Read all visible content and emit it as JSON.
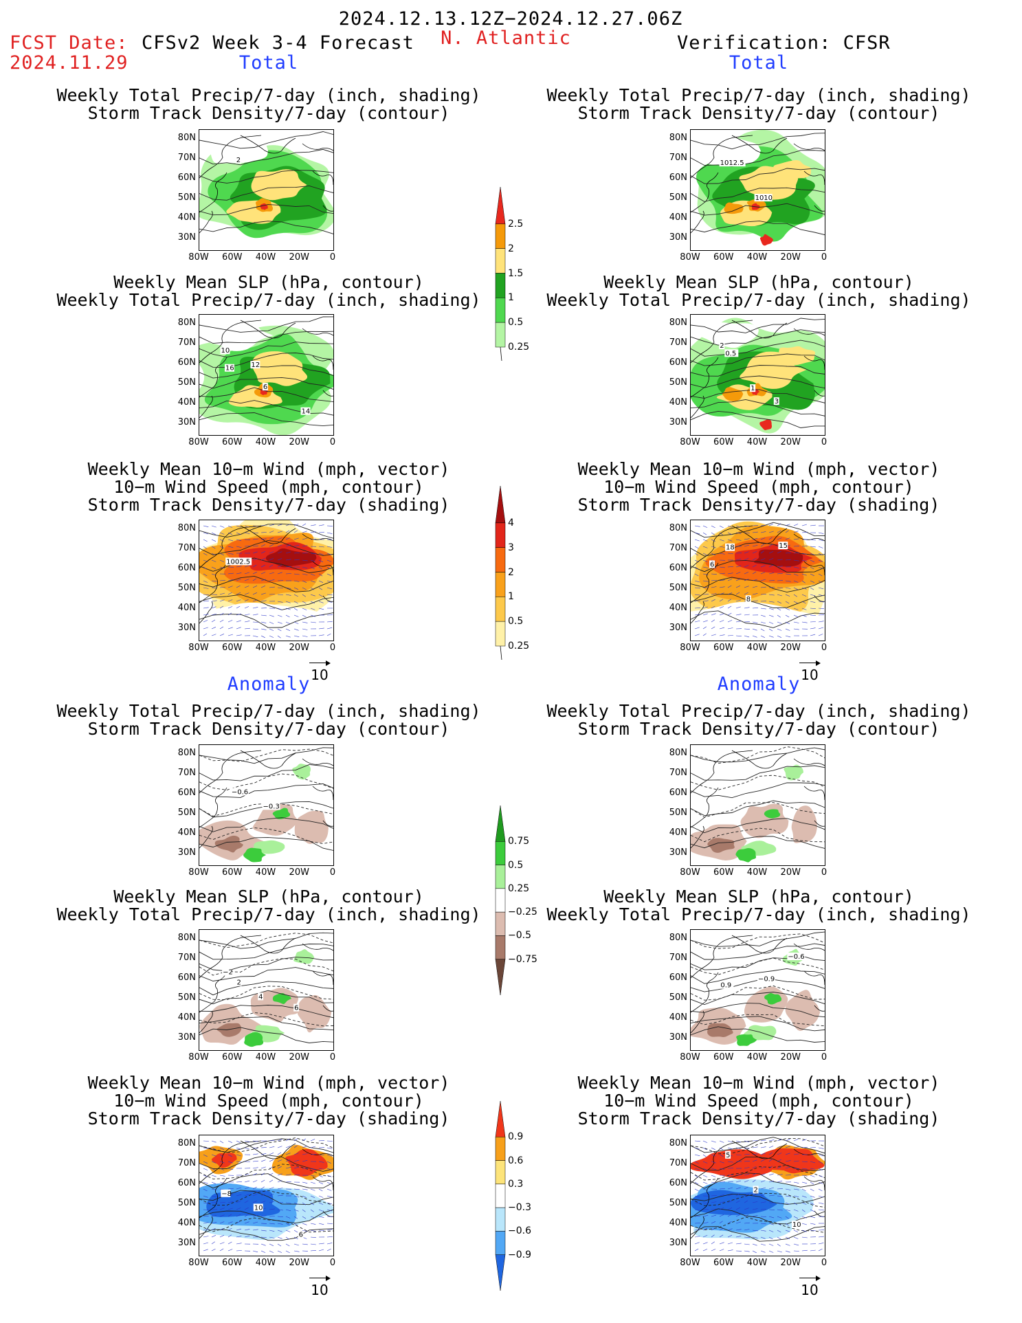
{
  "header": {
    "period": "2024.12.13.12Z−2024.12.27.06Z",
    "fcst_label": "FCST Date:",
    "fcst_date": "2024.11.29",
    "model": "CFSv2 Week 3-4 Forecast",
    "region": "N. Atlantic",
    "verification": "Verification: CFSR"
  },
  "sections": {
    "total_label": "Total",
    "anomaly_label": "Anomaly"
  },
  "titles": {
    "precip_storm": [
      "Weekly Total Precip/7-day (inch, shading)",
      "Storm Track Density/7-day (contour)"
    ],
    "slp_precip": [
      "Weekly Mean SLP (hPa, contour)",
      "Weekly Total Precip/7-day (inch, shading)"
    ],
    "wind_storm": [
      "Weekly Mean 10−m Wind (mph, vector)",
      "10−m Wind Speed (mph, contour)",
      "Storm Track Density/7-day (shading)"
    ]
  },
  "axes": {
    "lat_labels": [
      "80N",
      "70N",
      "60N",
      "50N",
      "40N",
      "30N"
    ],
    "lon_labels": [
      "80W",
      "60W",
      "40W",
      "20W",
      "0"
    ]
  },
  "vector_ref": "10",
  "colorbars": {
    "precip_total": {
      "labels": [
        "2.5",
        "2",
        "1.5",
        "1",
        "0.5",
        "0.25"
      ],
      "colors": [
        "#e8281e",
        "#f59a0a",
        "#ffe37a",
        "#21a321",
        "#4fd84f",
        "#b4f5a4"
      ]
    },
    "storm_total": {
      "labels": [
        "4",
        "3",
        "2",
        "1",
        "0.5",
        "0.25"
      ],
      "colors": [
        "#a50f0f",
        "#e2261a",
        "#f76a10",
        "#f9a11b",
        "#fdc94b",
        "#fff1a8"
      ]
    },
    "precip_anom": {
      "labels": [
        "0.75",
        "0.5",
        "0.25",
        "−0.25",
        "−0.5",
        "−0.75"
      ],
      "colors": [
        "#1f9a1f",
        "#3ccc3c",
        "#a9f09a",
        "#ffffff",
        "#dcbcb0",
        "#a87a6a",
        "#6b4638"
      ]
    },
    "storm_anom": {
      "labels": [
        "0.9",
        "0.6",
        "0.3",
        "−0.3",
        "−0.6",
        "−0.9"
      ],
      "colors": [
        "#f0361a",
        "#f7a01a",
        "#fde47a",
        "#ffffff",
        "#b9e6fb",
        "#52a8f5",
        "#1f66e0"
      ]
    }
  },
  "contour_labels": {
    "p1": [
      "2"
    ],
    "p2": [
      "1012.5",
      "1010"
    ],
    "p3": [
      "10",
      "12",
      "14",
      "16",
      "6"
    ],
    "p4": [
      "0.5",
      "1",
      "3",
      "2"
    ],
    "p5": [
      "1002.5"
    ],
    "p6": [
      "6",
      "8",
      "15",
      "18"
    ],
    "p7": [
      "−0.6",
      "−0.3"
    ],
    "p8": [],
    "p9": [
      "2",
      "4",
      "6",
      "−2"
    ],
    "p10": [
      "0.9",
      "−0.9",
      "−0.6"
    ],
    "p11": [
      "−8",
      "10",
      "6"
    ],
    "p12": [
      "5",
      "2",
      "10"
    ]
  }
}
